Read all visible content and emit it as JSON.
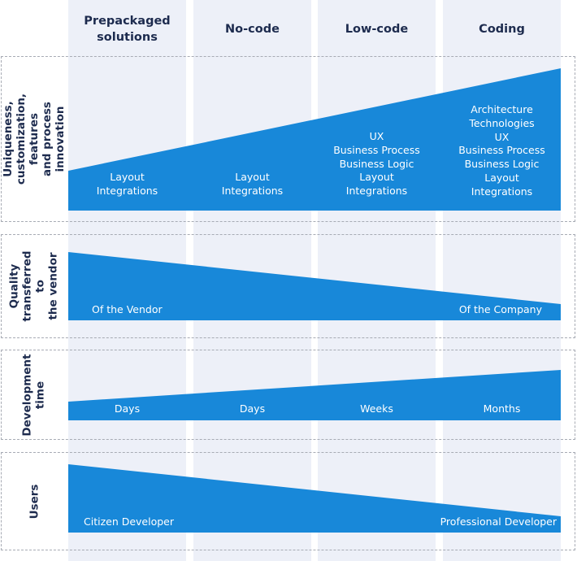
{
  "columns": [
    "Prepackaged\nsolutions",
    "No-code",
    "Low-code",
    "Coding"
  ],
  "rows": {
    "uniqueness": {
      "label": "Uniqueness,\ncustomization, features\nand process innovation",
      "cells": [
        "Layout\nIntegrations",
        "Layout\nIntegrations",
        "UX\nBusiness Process\nBusiness Logic\nLayout\nIntegrations",
        "Architecture\nTechnologies\nUX\nBusiness Process\nBusiness Logic\nLayout\nIntegrations"
      ]
    },
    "quality": {
      "label": "Quality\ntransferred to\nthe vendor",
      "left": "Of the Vendor",
      "right": "Of the Company"
    },
    "devtime": {
      "label": "Development\ntime",
      "cells": [
        "Days",
        "Days",
        "Weeks",
        "Months"
      ]
    },
    "users": {
      "label": "Users",
      "left": "Citizen Developer",
      "right": "Professional Developer"
    }
  },
  "colors": {
    "shape_fill": "#1888d9",
    "column_background": "#edf0f8",
    "text_dark": "#1d2b4e",
    "border": "#a7abb4"
  }
}
